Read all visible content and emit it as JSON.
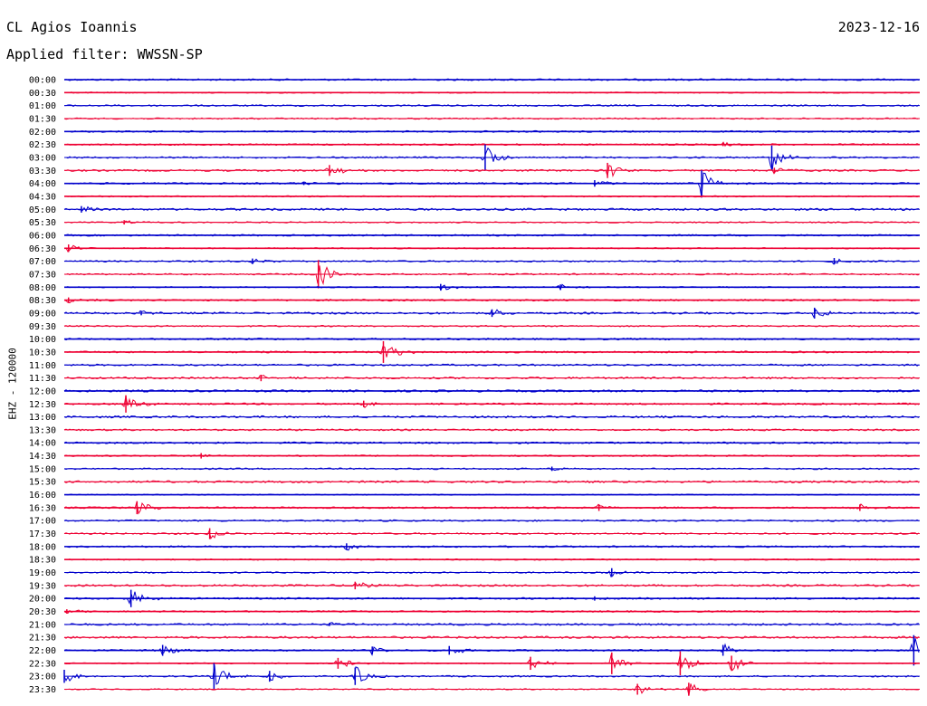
{
  "header": {
    "station": "CL Agios Ioannis",
    "date": "2023-12-16",
    "filter": "Applied filter: WWSSN-SP"
  },
  "chart_data": {
    "type": "helicorder",
    "channel_label": "EHZ - 120000",
    "row_minutes": 30,
    "colors": {
      "even": "#0000cc",
      "odd": "#ee0033"
    },
    "rows": [
      {
        "time": "00:00",
        "events": []
      },
      {
        "time": "00:30",
        "events": []
      },
      {
        "time": "01:00",
        "events": []
      },
      {
        "time": "01:30",
        "events": []
      },
      {
        "time": "02:00",
        "events": []
      },
      {
        "time": "02:30",
        "events": [
          {
            "t": 0.77,
            "a": 0.15
          }
        ]
      },
      {
        "time": "03:00",
        "events": [
          {
            "t": 0.492,
            "a": 1.2
          },
          {
            "t": 0.827,
            "a": 1.1
          }
        ]
      },
      {
        "time": "03:30",
        "events": [
          {
            "t": 0.31,
            "a": 0.5
          },
          {
            "t": 0.635,
            "a": 0.7
          },
          {
            "t": 0.83,
            "a": 0.25
          }
        ]
      },
      {
        "time": "04:00",
        "events": [
          {
            "t": 0.28,
            "a": 0.15
          },
          {
            "t": 0.62,
            "a": 0.3
          },
          {
            "t": 0.745,
            "a": 1.2
          }
        ]
      },
      {
        "time": "04:30",
        "events": []
      },
      {
        "time": "05:00",
        "events": [
          {
            "t": 0.02,
            "a": 0.3
          }
        ]
      },
      {
        "time": "05:30",
        "events": [
          {
            "t": 0.07,
            "a": 0.2
          }
        ]
      },
      {
        "time": "06:00",
        "events": []
      },
      {
        "time": "06:30",
        "events": [
          {
            "t": 0.005,
            "a": 0.35
          }
        ]
      },
      {
        "time": "07:00",
        "events": [
          {
            "t": 0.22,
            "a": 0.25
          },
          {
            "t": 0.9,
            "a": 0.3
          }
        ]
      },
      {
        "time": "07:30",
        "events": [
          {
            "t": 0.297,
            "a": 1.3
          }
        ]
      },
      {
        "time": "08:00",
        "events": [
          {
            "t": 0.44,
            "a": 0.3
          },
          {
            "t": 0.58,
            "a": 0.25
          }
        ]
      },
      {
        "time": "08:30",
        "events": [
          {
            "t": 0.005,
            "a": 0.25
          }
        ]
      },
      {
        "time": "09:00",
        "events": [
          {
            "t": 0.09,
            "a": 0.2
          },
          {
            "t": 0.5,
            "a": 0.35
          },
          {
            "t": 0.877,
            "a": 0.5
          }
        ]
      },
      {
        "time": "09:30",
        "events": []
      },
      {
        "time": "10:00",
        "events": []
      },
      {
        "time": "10:30",
        "events": [
          {
            "t": 0.373,
            "a": 1.0
          }
        ]
      },
      {
        "time": "11:00",
        "events": []
      },
      {
        "time": "11:30",
        "events": [
          {
            "t": 0.23,
            "a": 0.3
          }
        ]
      },
      {
        "time": "12:00",
        "events": []
      },
      {
        "time": "12:30",
        "events": [
          {
            "t": 0.072,
            "a": 0.8
          },
          {
            "t": 0.35,
            "a": 0.3
          }
        ]
      },
      {
        "time": "13:00",
        "events": []
      },
      {
        "time": "13:30",
        "events": []
      },
      {
        "time": "14:00",
        "events": []
      },
      {
        "time": "14:30",
        "events": [
          {
            "t": 0.16,
            "a": 0.25
          }
        ]
      },
      {
        "time": "15:00",
        "events": [
          {
            "t": 0.57,
            "a": 0.2
          }
        ]
      },
      {
        "time": "15:30",
        "events": []
      },
      {
        "time": "16:00",
        "events": []
      },
      {
        "time": "16:30",
        "events": [
          {
            "t": 0.085,
            "a": 0.6
          },
          {
            "t": 0.625,
            "a": 0.3
          },
          {
            "t": 0.93,
            "a": 0.3
          }
        ]
      },
      {
        "time": "17:00",
        "events": []
      },
      {
        "time": "17:30",
        "events": [
          {
            "t": 0.17,
            "a": 0.5
          }
        ]
      },
      {
        "time": "18:00",
        "events": [
          {
            "t": 0.33,
            "a": 0.3
          }
        ]
      },
      {
        "time": "18:30",
        "events": []
      },
      {
        "time": "19:00",
        "events": [
          {
            "t": 0.64,
            "a": 0.4
          }
        ]
      },
      {
        "time": "19:30",
        "events": [
          {
            "t": 0.34,
            "a": 0.35
          }
        ]
      },
      {
        "time": "20:00",
        "events": [
          {
            "t": 0.078,
            "a": 0.8
          },
          {
            "t": 0.62,
            "a": 0.2
          }
        ]
      },
      {
        "time": "20:30",
        "events": [
          {
            "t": 0.003,
            "a": 0.2
          }
        ]
      },
      {
        "time": "21:00",
        "events": [
          {
            "t": 0.31,
            "a": 0.15
          }
        ]
      },
      {
        "time": "21:30",
        "events": []
      },
      {
        "time": "22:00",
        "events": [
          {
            "t": 0.115,
            "a": 0.5
          },
          {
            "t": 0.36,
            "a": 0.35
          },
          {
            "t": 0.45,
            "a": 0.4
          },
          {
            "t": 0.77,
            "a": 0.5
          },
          {
            "t": 0.993,
            "a": 1.4
          }
        ]
      },
      {
        "time": "22:30",
        "events": [
          {
            "t": 0.32,
            "a": 0.5
          },
          {
            "t": 0.545,
            "a": 0.6
          },
          {
            "t": 0.64,
            "a": 1.0
          },
          {
            "t": 0.72,
            "a": 1.1
          },
          {
            "t": 0.78,
            "a": 0.7
          }
        ]
      },
      {
        "time": "23:00",
        "events": [
          {
            "t": 0.0,
            "a": 0.6
          },
          {
            "t": 0.175,
            "a": 1.2
          },
          {
            "t": 0.34,
            "a": 0.8
          },
          {
            "t": 0.24,
            "a": 0.5
          }
        ]
      },
      {
        "time": "23:30",
        "events": [
          {
            "t": 0.67,
            "a": 0.5
          },
          {
            "t": 0.73,
            "a": 0.6
          }
        ]
      }
    ]
  }
}
